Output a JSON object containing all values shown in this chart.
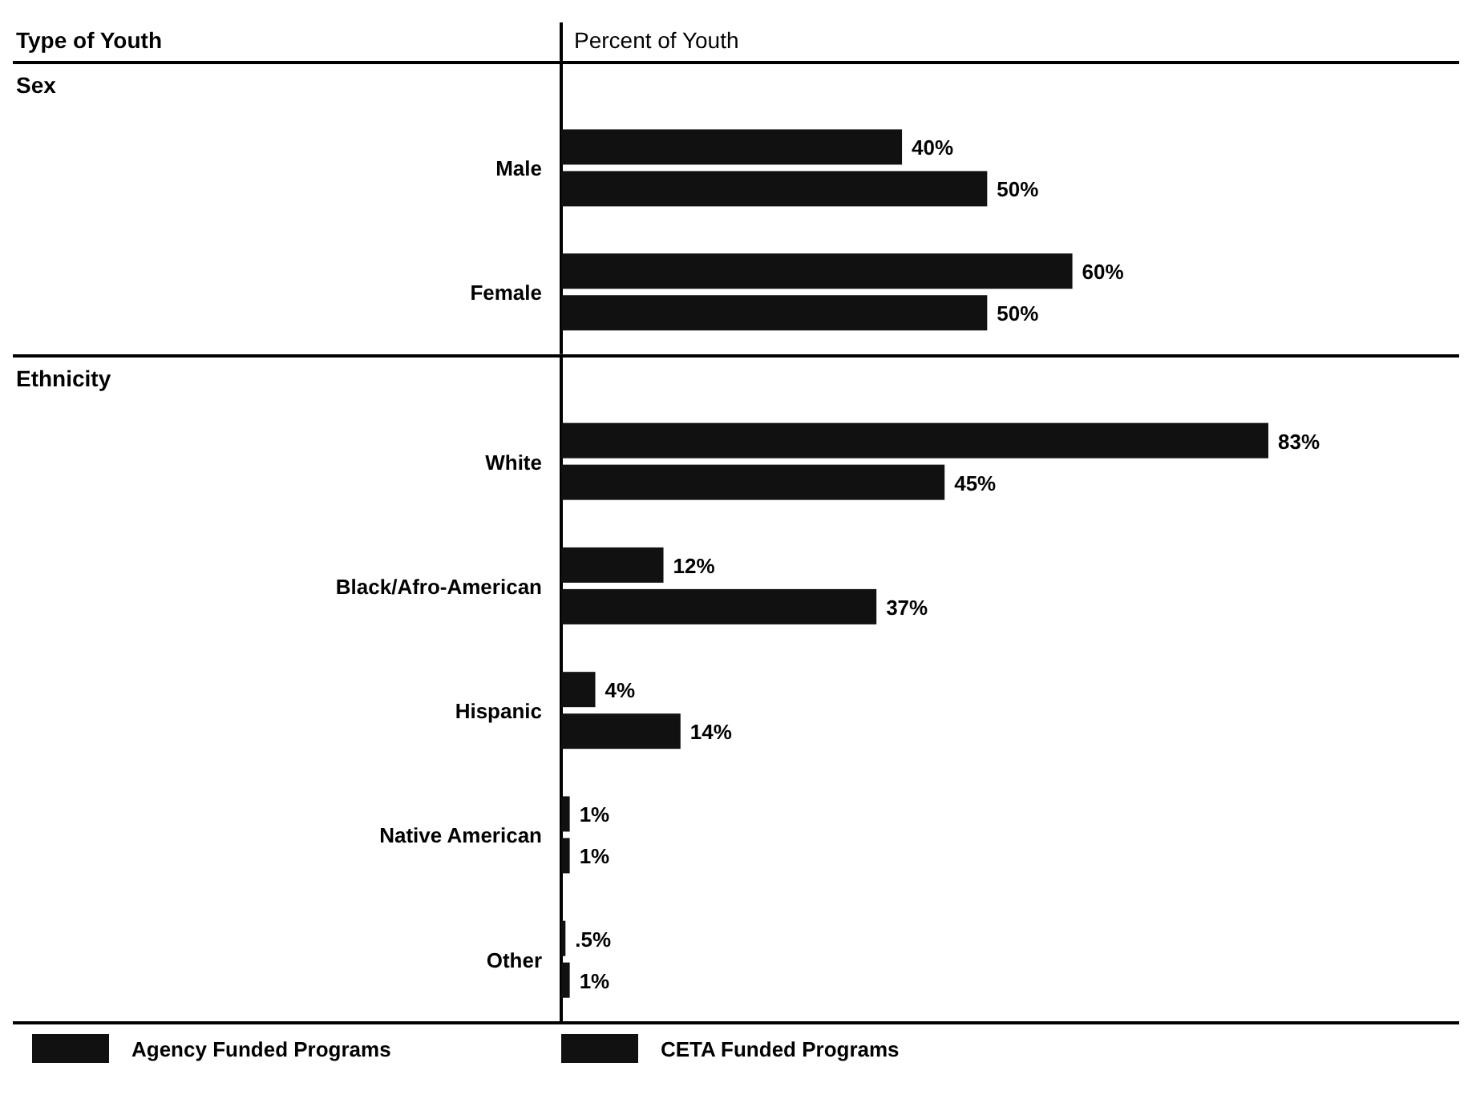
{
  "chart_data": [
    {
      "type": "bar",
      "orientation": "horizontal",
      "ylabel": "Sex",
      "annotations": [
        "Type of Youth",
        "Percent of Youth"
      ],
      "categories": [
        "Male",
        "Female"
      ],
      "series": [
        {
          "color": "#111111",
          "values": [
            40,
            60
          ],
          "value_labels": [
            "40%",
            "60%"
          ]
        },
        {
          "color": "#111111",
          "values": [
            50,
            50
          ],
          "value_labels": [
            "50%",
            "50%"
          ]
        }
      ]
    },
    {
      "type": "bar",
      "orientation": "horizontal",
      "ylabel": "Ethnicity",
      "categories": [
        "White",
        "Black/Afro-American",
        "Hispanic",
        "Native American",
        "Other"
      ],
      "series": [
        {
          "name": "Agency Funded Programs",
          "color": "#111111",
          "values": [
            83,
            12,
            4,
            1,
            0.5
          ],
          "value_labels": [
            "83%",
            "12%",
            "4%",
            "1%",
            ".5%"
          ]
        },
        {
          "name": "CETA Funded Programs",
          "color": "#111111",
          "values": [
            45,
            37,
            14,
            1,
            1
          ],
          "value_labels": [
            "45%",
            "37%",
            "14%",
            "1%",
            "1%"
          ]
        }
      ],
      "legend": "bottom"
    }
  ]
}
